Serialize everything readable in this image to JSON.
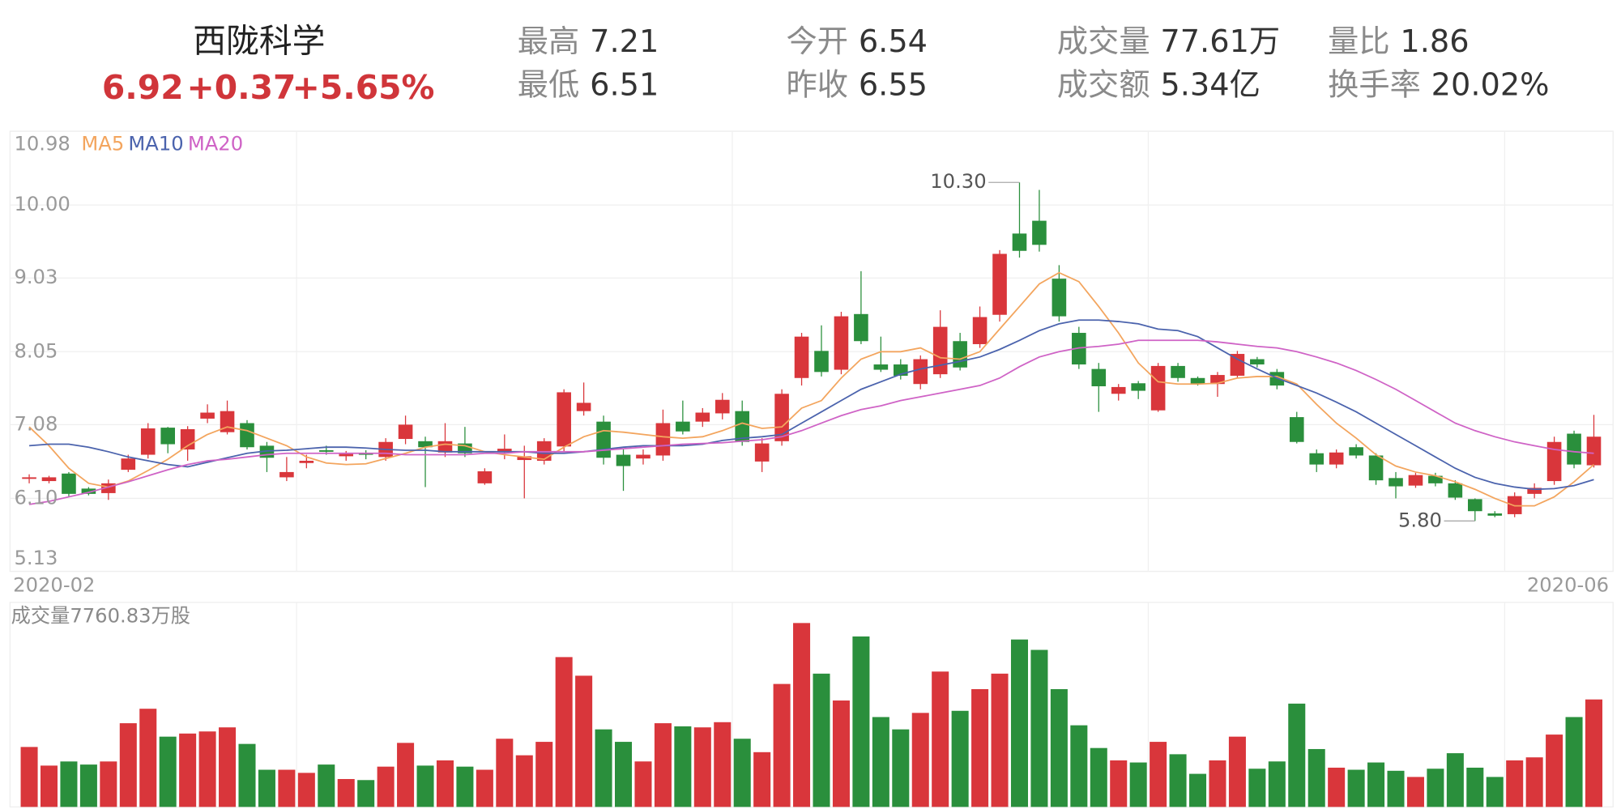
{
  "header": {
    "title": "西陇科学",
    "price": "6.92",
    "change": "+0.37",
    "change_pct": "+5.65%",
    "stats": [
      {
        "label": "最高",
        "value": "7.21"
      },
      {
        "label": "最低",
        "value": "6.51"
      },
      {
        "label": "今开",
        "value": "6.54"
      },
      {
        "label": "昨收",
        "value": "6.55"
      },
      {
        "label": "成交量",
        "value": "77.61万"
      },
      {
        "label": "成交额",
        "value": "5.34亿"
      },
      {
        "label": "量比",
        "value": "1.86"
      },
      {
        "label": "换手率",
        "value": "20.02%"
      }
    ]
  },
  "chart_data": [
    {
      "type": "candlestick",
      "ylim": [
        5.13,
        10.98
      ],
      "yticks": [
        5.13,
        {
          "value": 6.1,
          "label": "6.10"
        },
        7.08,
        8.05,
        9.03,
        {
          "value": 10,
          "label": "10.00"
        },
        10.98
      ],
      "grid": true,
      "up_color": "#d9363b",
      "down_color": "#2a8f3c",
      "categories": [
        "2020-02",
        null,
        null,
        null,
        null,
        null,
        null,
        null,
        null,
        null,
        null,
        null,
        null,
        null,
        null,
        null,
        null,
        null,
        null,
        null,
        null,
        null,
        null,
        null,
        null,
        null,
        null,
        null,
        null,
        null,
        null,
        null,
        null,
        null,
        null,
        null,
        null,
        null,
        null,
        null,
        null,
        null,
        null,
        null,
        null,
        null,
        null,
        null,
        null,
        null,
        null,
        null,
        null,
        null,
        null,
        null,
        null,
        null,
        null,
        null,
        null,
        null,
        null,
        null,
        null,
        null,
        null,
        null,
        null,
        null,
        null,
        null,
        null,
        null,
        null,
        "2020-06",
        null,
        null,
        null,
        null
      ],
      "open": [
        6.36,
        6.33,
        6.43,
        6.23,
        6.17,
        6.48,
        6.68,
        7.04,
        6.75,
        7.16,
        6.98,
        7.1,
        6.8,
        6.38,
        6.57,
        6.74,
        6.66,
        6.7,
        6.65,
        6.89,
        6.86,
        6.71,
        6.83,
        6.3,
        6.72,
        6.61,
        6.6,
        6.79,
        7.26,
        7.12,
        6.68,
        6.63,
        6.67,
        7.12,
        7.12,
        7.23,
        7.26,
        6.59,
        6.86,
        7.7,
        8.06,
        7.81,
        8.55,
        7.88,
        7.88,
        7.62,
        7.75,
        8.19,
        8.15,
        8.54,
        9.62,
        9.79,
        9.02,
        8.3,
        7.82,
        7.49,
        7.63,
        7.27,
        7.86,
        7.7,
        7.62,
        7.73,
        7.95,
        7.78,
        7.18,
        6.7,
        6.55,
        6.78,
        6.67,
        6.37,
        6.27,
        6.4,
        6.3,
        6.09,
        5.9,
        5.89,
        6.16,
        6.33,
        6.96,
        6.54
      ],
      "close": [
        6.38,
        6.38,
        6.16,
        6.16,
        6.3,
        6.63,
        7.03,
        6.82,
        7.02,
        7.24,
        7.26,
        6.78,
        6.64,
        6.45,
        6.6,
        6.72,
        6.69,
        6.68,
        6.85,
        7.08,
        6.78,
        6.86,
        6.7,
        6.46,
        6.76,
        6.66,
        6.86,
        7.51,
        7.37,
        6.64,
        6.53,
        6.68,
        7.1,
        6.99,
        7.24,
        7.41,
        6.85,
        6.83,
        7.49,
        8.25,
        7.78,
        8.52,
        8.19,
        7.81,
        7.73,
        7.95,
        8.38,
        7.84,
        8.51,
        9.35,
        9.39,
        9.47,
        8.52,
        7.88,
        7.59,
        7.58,
        7.53,
        7.86,
        7.7,
        7.62,
        7.74,
        8.02,
        7.88,
        7.6,
        6.85,
        6.55,
        6.71,
        6.67,
        6.34,
        6.26,
        6.41,
        6.3,
        6.11,
        5.93,
        5.87,
        6.13,
        6.24,
        6.85,
        6.55,
        6.92
      ],
      "high": [
        6.42,
        6.4,
        6.45,
        6.25,
        6.35,
        6.68,
        7.1,
        7.05,
        7.06,
        7.35,
        7.4,
        7.14,
        6.85,
        6.65,
        6.68,
        6.8,
        6.73,
        6.74,
        6.9,
        7.2,
        6.92,
        7.1,
        7.05,
        6.5,
        6.95,
        6.8,
        6.9,
        7.55,
        7.64,
        7.2,
        6.75,
        6.75,
        7.28,
        7.4,
        7.3,
        7.5,
        7.4,
        6.9,
        7.55,
        8.3,
        8.4,
        8.58,
        9.12,
        8.25,
        7.95,
        8.0,
        8.6,
        8.3,
        8.65,
        9.4,
        10.3,
        10.2,
        9.2,
        8.38,
        7.9,
        7.62,
        7.66,
        7.9,
        7.9,
        7.72,
        7.78,
        8.06,
        7.98,
        7.82,
        7.25,
        6.75,
        6.75,
        6.82,
        6.7,
        6.45,
        6.44,
        6.44,
        6.34,
        6.1,
        5.93,
        6.18,
        6.3,
        6.92,
        7.0,
        7.21
      ],
      "low": [
        6.3,
        6.3,
        6.12,
        6.14,
        6.08,
        6.45,
        6.63,
        6.7,
        6.6,
        7.1,
        6.95,
        6.75,
        6.45,
        6.33,
        6.5,
        6.68,
        6.6,
        6.62,
        6.6,
        6.82,
        6.25,
        6.65,
        6.65,
        6.28,
        6.62,
        6.1,
        6.55,
        6.72,
        7.2,
        6.55,
        6.2,
        6.55,
        6.6,
        6.95,
        7.05,
        7.15,
        6.8,
        6.45,
        6.8,
        7.6,
        7.72,
        7.75,
        8.15,
        7.78,
        7.68,
        7.55,
        7.7,
        7.8,
        8.1,
        8.45,
        9.3,
        9.38,
        8.45,
        7.82,
        7.25,
        7.4,
        7.42,
        7.25,
        7.65,
        7.6,
        7.45,
        7.7,
        7.84,
        7.55,
        6.83,
        6.45,
        6.5,
        6.63,
        6.28,
        6.1,
        6.24,
        6.26,
        6.08,
        5.8,
        5.85,
        5.85,
        6.1,
        6.28,
        6.5,
        6.51
      ],
      "high_label": "10.30",
      "low_label": "5.80",
      "series": [
        {
          "name": "MA5",
          "color": "#f3a55e",
          "values": [
            7.05,
            6.8,
            6.5,
            6.3,
            6.25,
            6.33,
            6.47,
            6.62,
            6.8,
            6.95,
            7.05,
            7.0,
            6.9,
            6.8,
            6.65,
            6.57,
            6.55,
            6.56,
            6.63,
            6.7,
            6.78,
            6.82,
            6.8,
            6.72,
            6.68,
            6.65,
            6.62,
            6.78,
            6.92,
            7.0,
            6.98,
            6.95,
            6.92,
            6.9,
            6.92,
            7.0,
            7.1,
            7.03,
            7.05,
            7.3,
            7.4,
            7.7,
            7.95,
            8.05,
            8.05,
            8.1,
            7.97,
            7.95,
            8.05,
            8.35,
            8.65,
            8.95,
            9.1,
            8.98,
            8.65,
            8.3,
            7.9,
            7.65,
            7.62,
            7.62,
            7.63,
            7.7,
            7.72,
            7.72,
            7.62,
            7.35,
            7.1,
            6.9,
            6.68,
            6.53,
            6.45,
            6.4,
            6.32,
            6.22,
            6.1,
            6.0,
            6.0,
            6.12,
            6.32,
            6.55
          ]
        },
        {
          "name": "MA10",
          "color": "#4b63ad",
          "values": [
            6.8,
            6.82,
            6.82,
            6.78,
            6.72,
            6.65,
            6.6,
            6.55,
            6.52,
            6.58,
            6.64,
            6.7,
            6.73,
            6.74,
            6.76,
            6.78,
            6.78,
            6.77,
            6.75,
            6.74,
            6.74,
            6.72,
            6.72,
            6.72,
            6.72,
            6.72,
            6.7,
            6.7,
            6.72,
            6.75,
            6.78,
            6.8,
            6.8,
            6.8,
            6.82,
            6.87,
            6.9,
            6.92,
            6.95,
            7.1,
            7.25,
            7.4,
            7.55,
            7.65,
            7.75,
            7.82,
            7.87,
            7.92,
            7.98,
            8.08,
            8.2,
            8.33,
            8.42,
            8.47,
            8.47,
            8.45,
            8.42,
            8.35,
            8.33,
            8.25,
            8.1,
            7.95,
            7.82,
            7.7,
            7.6,
            7.5,
            7.38,
            7.25,
            7.1,
            6.95,
            6.8,
            6.65,
            6.5,
            6.38,
            6.3,
            6.25,
            6.22,
            6.23,
            6.27,
            6.35
          ]
        },
        {
          "name": "MA20",
          "color": "#cf63c6",
          "values": [
            6.02,
            6.06,
            6.12,
            6.18,
            6.25,
            6.32,
            6.4,
            6.48,
            6.55,
            6.6,
            6.62,
            6.65,
            6.68,
            6.7,
            6.7,
            6.7,
            6.7,
            6.7,
            6.7,
            6.68,
            6.68,
            6.68,
            6.68,
            6.7,
            6.7,
            6.72,
            6.72,
            6.72,
            6.72,
            6.74,
            6.76,
            6.78,
            6.8,
            6.82,
            6.83,
            6.84,
            6.86,
            6.88,
            6.92,
            7.0,
            7.1,
            7.2,
            7.28,
            7.33,
            7.4,
            7.45,
            7.5,
            7.55,
            7.6,
            7.7,
            7.85,
            7.98,
            8.05,
            8.1,
            8.12,
            8.15,
            8.2,
            8.2,
            8.2,
            8.2,
            8.18,
            8.15,
            8.12,
            8.1,
            8.05,
            7.98,
            7.9,
            7.8,
            7.68,
            7.55,
            7.4,
            7.25,
            7.1,
            7.0,
            6.92,
            6.85,
            6.8,
            6.75,
            6.72,
            6.7
          ]
        }
      ]
    },
    {
      "type": "volume",
      "title": "成交量7760.83万股",
      "values": [
        4330,
        2985,
        3283,
        3060,
        3283,
        6045,
        7090,
        5075,
        5300,
        5450,
        5745,
        4550,
        2685,
        2685,
        2460,
        3060,
        2015,
        1940,
        2910,
        4625,
        2985,
        3360,
        2910,
        2685,
        4925,
        3730,
        4700,
        10820,
        9475,
        5600,
        4700,
        3285,
        6045,
        5820,
        5745,
        6120,
        4925,
        3955,
        8880,
        13280,
        9625,
        7685,
        12310,
        6490,
        5600,
        6790,
        9775,
        6940,
        8505,
        9625,
        12090,
        11340,
        8505,
        5895,
        4255,
        3360,
        3210,
        4700,
        3805,
        2390,
        3360,
        5075,
        2760,
        3285,
        7460,
        4180,
        2835,
        2685,
        3210,
        2610,
        2165,
        2760,
        3880,
        2835,
        2165,
        3360,
        3580,
        5225,
        6490,
        7760.83
      ]
    }
  ]
}
